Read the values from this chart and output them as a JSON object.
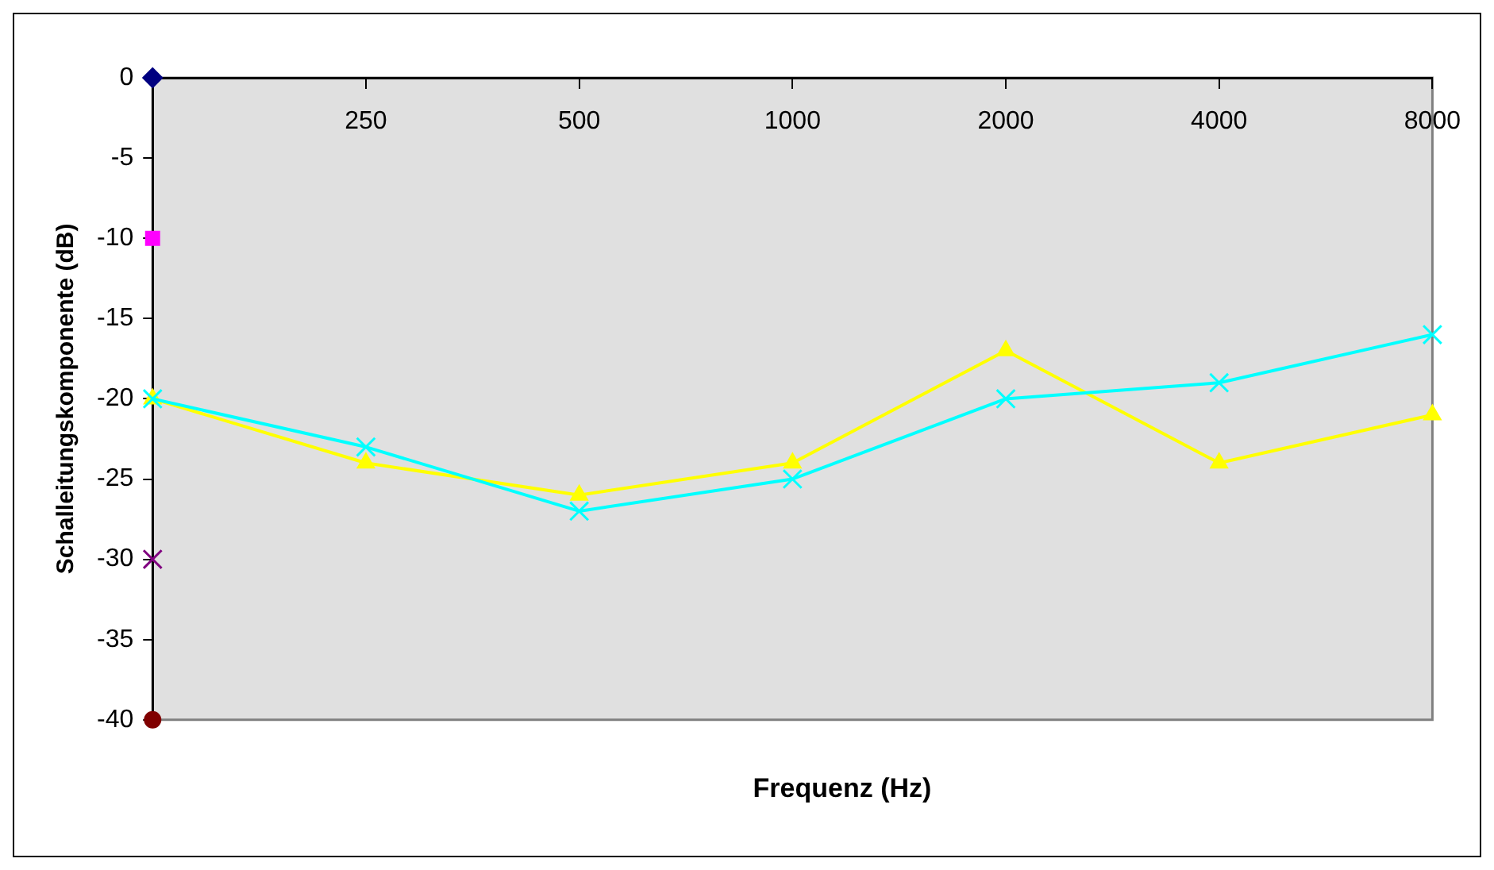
{
  "chart_data": {
    "type": "line",
    "xlabel": "Frequenz (Hz)",
    "ylabel": "Schalleitungskomponente (dB)",
    "categories": [
      null,
      "250",
      "500",
      "1000",
      "2000",
      "4000",
      "8000"
    ],
    "series": [
      {
        "type": "line",
        "color": "#ffff00",
        "marker": "triangle",
        "values": [
          -20,
          -24,
          -26,
          -24,
          -17,
          -24,
          -21
        ]
      },
      {
        "type": "line",
        "color": "#00ffff",
        "marker": "cross",
        "values": [
          -20,
          -23,
          -27,
          -25,
          -20,
          -19,
          -16
        ]
      },
      {
        "type": "scatter",
        "color": "#000080",
        "marker": "diamond",
        "values": [
          0,
          null,
          null,
          null,
          null,
          null,
          null
        ]
      },
      {
        "type": "scatter",
        "color": "#ff00ff",
        "marker": "square",
        "values": [
          -10,
          null,
          null,
          null,
          null,
          null,
          null
        ]
      },
      {
        "type": "scatter",
        "color": "#800080",
        "marker": "cross",
        "values": [
          -30,
          null,
          null,
          null,
          null,
          null,
          null
        ]
      },
      {
        "type": "scatter",
        "color": "#800000",
        "marker": "circle",
        "values": [
          -40,
          null,
          null,
          null,
          null,
          null,
          null
        ]
      }
    ],
    "ylim": [
      -40,
      0
    ],
    "yticks": [
      0,
      -5,
      -10,
      -15,
      -20,
      -25,
      -30,
      -35,
      -40
    ],
    "grid": false,
    "legend": false
  }
}
